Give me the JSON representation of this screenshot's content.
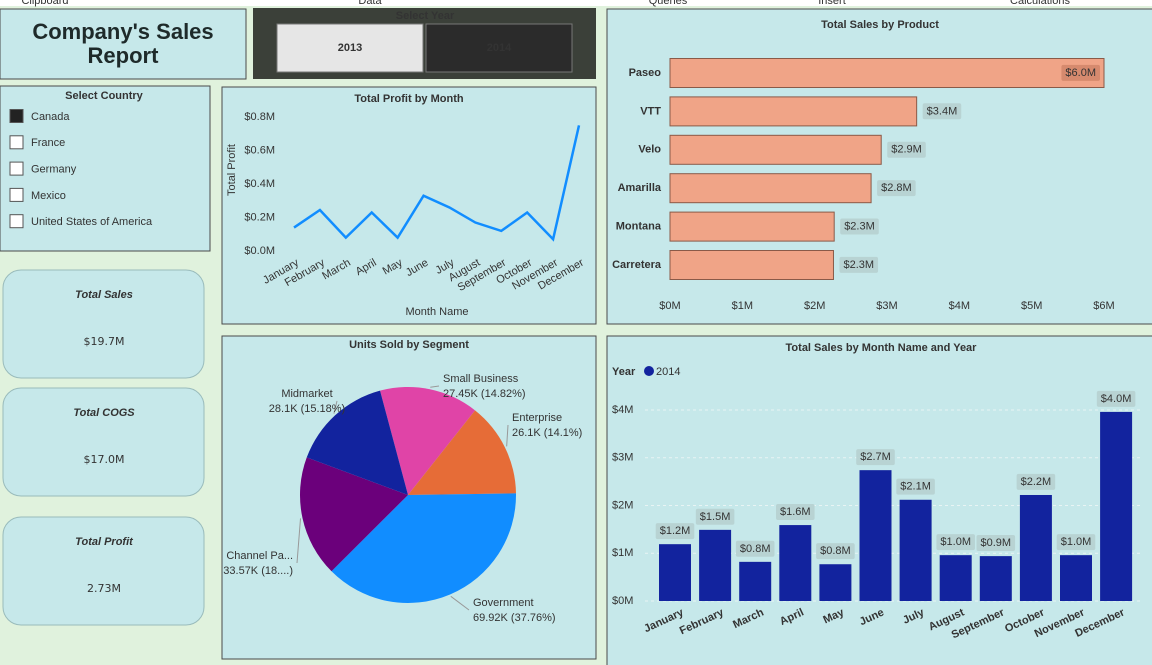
{
  "ribbon": [
    "Clipboard",
    "Data",
    "Queries",
    "Insert",
    "Calculations"
  ],
  "header": {
    "title": "Company's Sales Report"
  },
  "year_slicer": {
    "title": "Select Year",
    "options": [
      {
        "label": "2013",
        "selected": true
      },
      {
        "label": "2014",
        "selected": false
      }
    ]
  },
  "country_slicer": {
    "title": "Select Country",
    "options": [
      {
        "label": "Canada",
        "selected": true
      },
      {
        "label": "France",
        "selected": false
      },
      {
        "label": "Germany",
        "selected": false
      },
      {
        "label": "Mexico",
        "selected": false
      },
      {
        "label": "United States of America",
        "selected": false
      }
    ]
  },
  "cards": [
    {
      "label": "Total Sales",
      "value": "$19.7M"
    },
    {
      "label": "Total COGS",
      "value": "$17.0M"
    },
    {
      "label": "Total Profit",
      "value": "2.73M"
    }
  ],
  "chart_data": [
    {
      "type": "line",
      "title": "Total Profit by Month",
      "x_label": "Month Name",
      "y_label": "Total Profit",
      "categories": [
        "January",
        "February",
        "March",
        "April",
        "May",
        "June",
        "July",
        "August",
        "September",
        "October",
        "November",
        "December"
      ],
      "values": [
        140000,
        245000,
        80000,
        230000,
        80000,
        330000,
        260000,
        170000,
        120000,
        230000,
        70000,
        750000
      ],
      "color": "#118dff",
      "grid": false,
      "ylim": [
        0,
        800000
      ],
      "yticks": [
        {
          "value": 0,
          "label": "$0.0M"
        },
        {
          "value": 200000,
          "label": "$0.2M"
        },
        {
          "value": 400000,
          "label": "$0.4M"
        },
        {
          "value": 600000,
          "label": "$0.6M"
        },
        {
          "value": 800000,
          "label": "$0.8M"
        }
      ]
    },
    {
      "type": "barh",
      "title": "Total Sales by Product",
      "categories": [
        "Paseo",
        "VTT",
        "Velo",
        "Amarilla",
        "Montana",
        "Carretera"
      ],
      "values": [
        6000000,
        3410000,
        2920000,
        2780000,
        2270000,
        2260000
      ],
      "value_labels": [
        "$6.0M",
        "$3.4M",
        "$2.9M",
        "$2.8M",
        "$2.3M",
        "$2.3M"
      ],
      "color": "#f0a487",
      "xlim": [
        0,
        6000000
      ],
      "xticks": [
        {
          "value": 0,
          "label": "$0M"
        },
        {
          "value": 1000000,
          "label": "$1M"
        },
        {
          "value": 2000000,
          "label": "$2M"
        },
        {
          "value": 3000000,
          "label": "$3M"
        },
        {
          "value": 4000000,
          "label": "$4M"
        },
        {
          "value": 5000000,
          "label": "$5M"
        },
        {
          "value": 6000000,
          "label": "$6M"
        }
      ]
    },
    {
      "type": "pie",
      "title": "Units Sold by Segment",
      "categories": [
        "Small Business",
        "Enterprise",
        "Government",
        "Channel Pa...",
        "Midmarket"
      ],
      "values": [
        27450,
        26100,
        69920,
        33570,
        28100
      ],
      "value_labels": [
        "27.45K (14.82%)",
        "26.1K (14.1%)",
        "69.92K (37.76%)",
        "33.57K (18....)",
        "28.1K (15.18%)"
      ],
      "colors": [
        "#e044a7",
        "#e66c37",
        "#118dff",
        "#6b007b",
        "#12239e"
      ]
    },
    {
      "type": "bar",
      "title": "Total Sales by Month Name and Year",
      "legend_title": "Year",
      "categories": [
        "January",
        "February",
        "March",
        "April",
        "May",
        "June",
        "July",
        "August",
        "September",
        "October",
        "November",
        "December"
      ],
      "series": [
        {
          "name": "2014",
          "color": "#12239e",
          "values": [
            1190000,
            1490000,
            820000,
            1590000,
            770000,
            2740000,
            2120000,
            960000,
            940000,
            2220000,
            960000,
            3960000
          ],
          "value_labels": [
            "$1.2M",
            "$1.5M",
            "$0.8M",
            "$1.6M",
            "$0.8M",
            "$2.7M",
            "$2.1M",
            "$1.0M",
            "$0.9M",
            "$2.2M",
            "$1.0M",
            "$4.0M"
          ]
        }
      ],
      "ylim": [
        0,
        4000000
      ],
      "grid": true,
      "yticks": [
        {
          "value": 0,
          "label": "$0M"
        },
        {
          "value": 1000000,
          "label": "$1M"
        },
        {
          "value": 2000000,
          "label": "$2M"
        },
        {
          "value": 3000000,
          "label": "$3M"
        },
        {
          "value": 4000000,
          "label": "$4M"
        }
      ]
    }
  ]
}
